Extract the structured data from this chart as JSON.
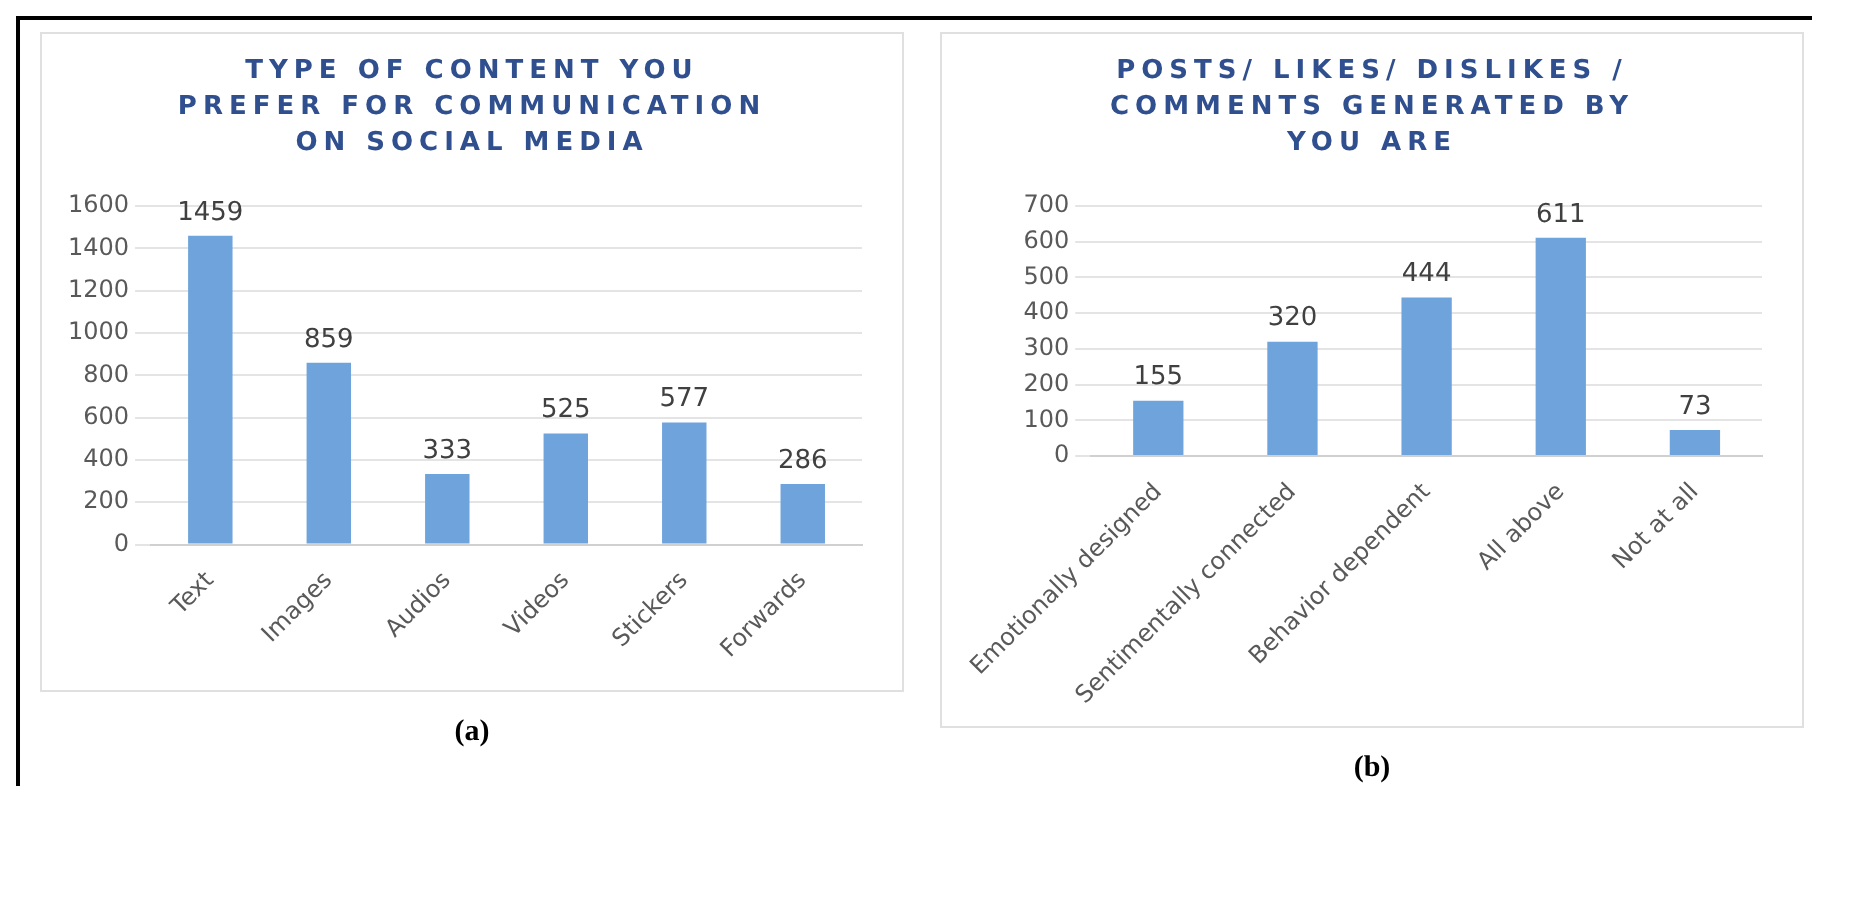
{
  "chart_data": [
    {
      "type": "bar",
      "title": "TYPE OF CONTENT YOU PREFER FOR COMMUNICATION ON SOCIAL MEDIA",
      "categories": [
        "Text",
        "Images",
        "Audios",
        "Videos",
        "Stickers",
        "Forwards"
      ],
      "values": [
        1459,
        859,
        333,
        525,
        577,
        286
      ],
      "color": "#6fa3dc",
      "ylim": [
        0,
        1600
      ],
      "yticks": [
        0,
        200,
        400,
        600,
        800,
        1000,
        1200,
        1400,
        1600
      ],
      "grid": "y",
      "data_labels": true,
      "annotations": [
        "(a)"
      ]
    },
    {
      "type": "bar",
      "title": "POSTS/ LIKES/ DISLIKES / COMMENTS GENERATED BY YOU ARE",
      "categories": [
        "Emotionally designed",
        "Sentimentally connected",
        "Behavior dependent",
        "All above",
        "Not at all"
      ],
      "values": [
        155,
        320,
        444,
        611,
        73
      ],
      "color": "#6fa3dc",
      "ylim": [
        0,
        700
      ],
      "yticks": [
        0,
        100,
        200,
        300,
        400,
        500,
        600,
        700
      ],
      "grid": "y",
      "data_labels": true,
      "annotations": [
        "(b)"
      ]
    }
  ]
}
